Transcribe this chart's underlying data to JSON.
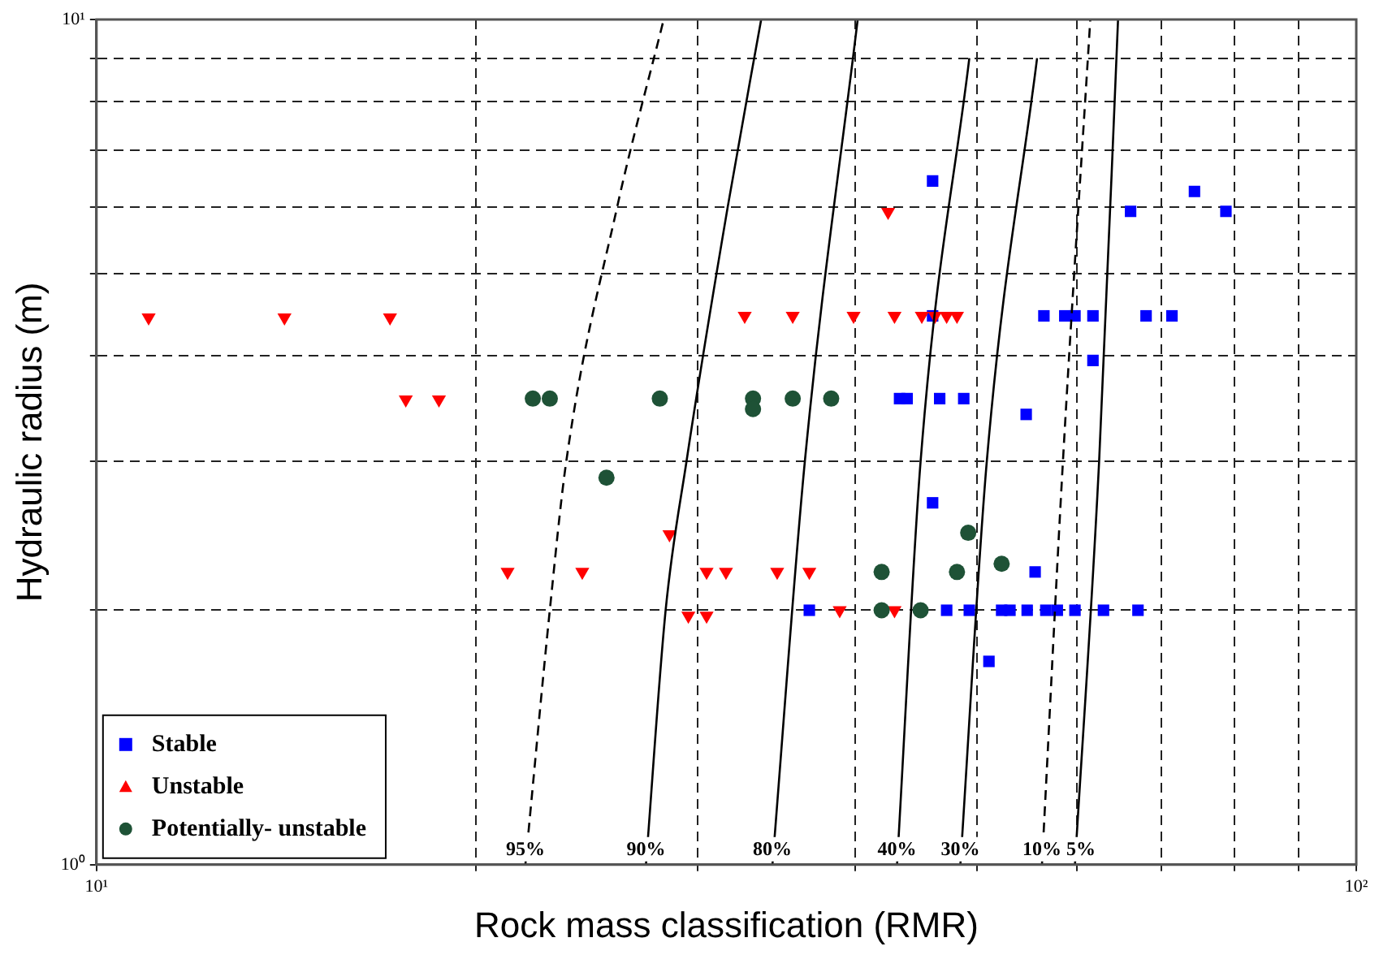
{
  "chart_data": {
    "type": "scatter",
    "xlabel": "Rock mass classification (RMR)",
    "ylabel": "Hydraulic radius (m)",
    "log": "xy",
    "xlim": [
      10,
      100
    ],
    "ylim": [
      1,
      10
    ],
    "xticks": [
      {
        "value": 10,
        "label": "10¹"
      },
      {
        "value": 20,
        "label": null
      },
      {
        "value": 30,
        "label": null
      },
      {
        "value": 40,
        "label": null
      },
      {
        "value": 50,
        "label": null
      },
      {
        "value": 60,
        "label": null
      },
      {
        "value": 70,
        "label": null
      },
      {
        "value": 80,
        "label": null
      },
      {
        "value": 90,
        "label": null
      },
      {
        "value": 100,
        "label": "10²"
      }
    ],
    "yticks": [
      {
        "value": 1,
        "label": "10⁰"
      },
      {
        "value": 2,
        "label": null
      },
      {
        "value": 3,
        "label": null
      },
      {
        "value": 4,
        "label": null
      },
      {
        "value": 5,
        "label": null
      },
      {
        "value": 6,
        "label": null
      },
      {
        "value": 7,
        "label": null
      },
      {
        "value": 8,
        "label": null
      },
      {
        "value": 9,
        "label": null
      },
      {
        "value": 10,
        "label": "10¹"
      }
    ],
    "grid": true,
    "legend": "bottom left",
    "series": [
      {
        "name": "Stable",
        "color": "#0000ff",
        "marker": "square",
        "x": [
          36.8,
          47.3,
          49.3,
          52.3,
          53.1,
          54.8,
          56.7,
          57.9,
          59.8,
          63.0,
          67.1,
          46.1,
          66.2,
          74.4,
          78.8,
          56.5,
          58.7,
          59.8,
          61.8,
          68.1,
          71.4,
          46.1,
          61.8,
          43.4,
          44.0,
          46.7,
          48.8,
          54.7,
          46.1,
          55.6,
          51.1
        ],
        "values": [
          2,
          2,
          2,
          2,
          2,
          2,
          2,
          2,
          2,
          2,
          2,
          6.44,
          5.93,
          6.26,
          5.93,
          4.46,
          4.46,
          4.46,
          4.46,
          4.46,
          4.46,
          4.46,
          3.95,
          3.56,
          3.56,
          3.56,
          3.56,
          3.41,
          2.68,
          2.22,
          1.74
        ]
      },
      {
        "name": "Unstable",
        "color": "#ff0000",
        "marker": "triangle",
        "x": [
          11.0,
          14.1,
          17.1,
          17.6,
          18.7,
          28.5,
          21.2,
          24.3,
          30.5,
          31.6,
          29.5,
          30.5,
          42.5,
          32.7,
          35.7,
          39.9,
          43.0,
          45.2,
          46.3,
          47.3,
          48.2,
          34.7,
          36.8,
          38.9,
          43.0
        ],
        "values": [
          4.44,
          4.44,
          4.44,
          3.55,
          3.55,
          2.46,
          2.22,
          2.22,
          2.22,
          2.22,
          1.97,
          1.97,
          5.92,
          4.46,
          4.46,
          4.46,
          4.46,
          4.46,
          4.46,
          4.46,
          4.46,
          2.22,
          2.22,
          2,
          2
        ]
      },
      {
        "name": "Potentially- unstable",
        "color": "#1e5236",
        "marker": "circle",
        "x": [
          22.2,
          22.9,
          28.0,
          25.4,
          33.2,
          33.2,
          35.7,
          38.3,
          49.2,
          42.0,
          48.2,
          52.3,
          42.0,
          45.1
        ],
        "values": [
          3.56,
          3.56,
          3.56,
          2.87,
          3.56,
          3.46,
          3.56,
          3.56,
          2.47,
          2.22,
          2.22,
          2.27,
          2,
          2
        ]
      },
      {
        "name": "95%",
        "type": "line",
        "color": "#000000",
        "marker": "none",
        "line_style": "dashed",
        "x": [
          21.9,
          22.9,
          23.6,
          25.9,
          28.2
        ],
        "values": [
          1,
          2,
          3,
          6,
          10
        ]
      },
      {
        "name": "90%",
        "type": "line",
        "color": "#000000",
        "marker": "none",
        "line_style": "solid",
        "x": [
          27.3,
          28.3,
          29.4,
          31.7,
          33.7
        ],
        "values": [
          1,
          2,
          3,
          6,
          10
        ]
      },
      {
        "name": "80%",
        "type": "line",
        "color": "#000000",
        "marker": "none",
        "line_style": "solid",
        "x": [
          34.4,
          36.5,
          40.2
        ],
        "values": [
          1,
          3,
          10
        ]
      },
      {
        "name": "40%",
        "type": "line",
        "color": "#000000",
        "marker": "none",
        "line_style": "solid",
        "x": [
          43.2,
          45.1,
          49.3
        ],
        "values": [
          1,
          3,
          9
        ]
      },
      {
        "name": "30%",
        "type": "line",
        "color": "#000000",
        "marker": "none",
        "line_style": "solid",
        "x": [
          48.5,
          50.9,
          55.8
        ],
        "values": [
          1,
          3,
          9
        ]
      },
      {
        "name": "10%",
        "type": "line",
        "color": "#000000",
        "marker": "none",
        "line_style": "dashed",
        "x": [
          56.3,
          58.5,
          61.5
        ],
        "values": [
          1,
          3,
          10
        ]
      },
      {
        "name": "5%",
        "type": "line",
        "color": "#000000",
        "marker": "none",
        "line_style": "solid",
        "x": [
          59.8,
          62.5,
          64.7
        ],
        "values": [
          1,
          3,
          10
        ]
      }
    ]
  }
}
